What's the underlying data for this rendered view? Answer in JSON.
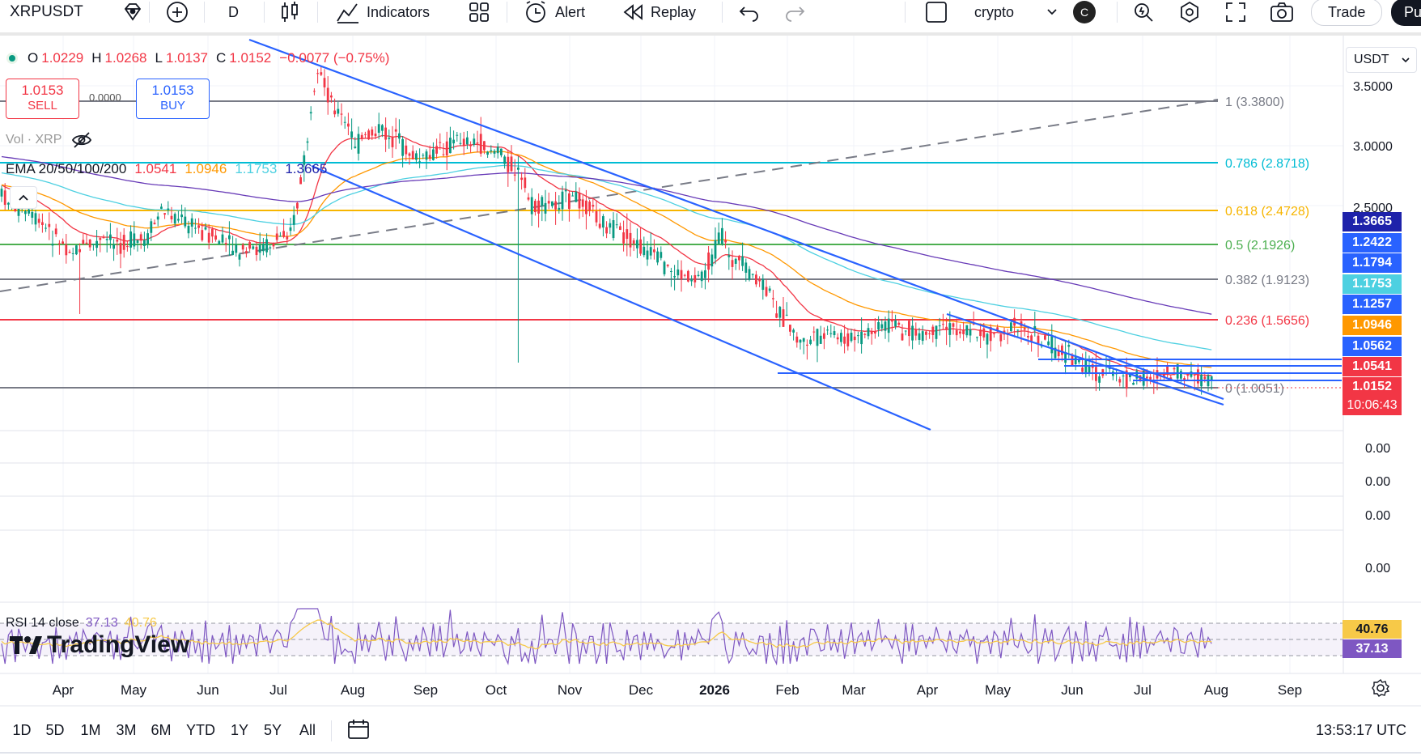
{
  "toolbar": {
    "symbol": "XRPUSDT",
    "interval": "D",
    "indicators_label": "Indicators",
    "alert_label": "Alert",
    "replay_label": "Replay",
    "layout_name": "crypto",
    "avatar_letter": "C",
    "trade_label": "Trade",
    "publish_label": "Pu"
  },
  "legend": {
    "open_label": "O",
    "open_value": "1.0229",
    "high_label": "H",
    "high_value": "1.0268",
    "low_label": "L",
    "low_value": "1.0137",
    "close_label": "C",
    "close_value": "1.0152",
    "change": "−0.0077 (−0.75%)"
  },
  "order": {
    "sell_price": "1.0153",
    "sell_label": "SELL",
    "buy_price": "1.0153",
    "buy_label": "BUY",
    "spread": "0.0000"
  },
  "volume_legend": "Vol · XRP",
  "ema_legend": {
    "title": "EMA 20/50/100/200",
    "v20": "1.0541",
    "v50": "1.0946",
    "v100": "1.1753",
    "v200": "1.3665"
  },
  "rsi_legend": {
    "title": "RSI 14 close",
    "value": "37.13",
    "ma": "40.76"
  },
  "brand": "TradingView",
  "price_axis": {
    "currency": "USDT",
    "ticks": [
      "3.5000",
      "3.0000",
      "2.5000"
    ],
    "zero_ticks": [
      "0.00",
      "0.00",
      "0.00",
      "0.00"
    ]
  },
  "fib_levels": [
    {
      "label": "1 (3.3800)",
      "color": "#787b86"
    },
    {
      "label": "0.786 (2.8718)",
      "color": "#00bcd4"
    },
    {
      "label": "0.618 (2.4728)",
      "color": "#f7b500"
    },
    {
      "label": "0.5 (2.1926)",
      "color": "#4caf50"
    },
    {
      "label": "0.382 (1.9123)",
      "color": "#787b86"
    },
    {
      "label": "0.236 (1.5656)",
      "color": "#f23645"
    },
    {
      "label": "0 (1.0051)",
      "color": "#787b86"
    }
  ],
  "price_badges": [
    {
      "value": "1.3665",
      "color": "#1e22aa"
    },
    {
      "value": "1.2422",
      "color": "#2962ff"
    },
    {
      "value": "1.1794",
      "color": "#2962ff"
    },
    {
      "value": "1.1753",
      "color": "#4dd0e1"
    },
    {
      "value": "1.1257",
      "color": "#2962ff"
    },
    {
      "value": "1.0946",
      "color": "#ff9800"
    },
    {
      "value": "1.0562",
      "color": "#2962ff"
    },
    {
      "value": "1.0541",
      "color": "#f23645"
    },
    {
      "value": "1.0152",
      "color": "#f23645"
    }
  ],
  "countdown": "10:06:43",
  "rsi_badges": [
    {
      "value": "40.76",
      "color": "#f7c948"
    },
    {
      "value": "37.13",
      "color": "#7e57c2"
    }
  ],
  "time_axis": [
    "Apr",
    "May",
    "Jun",
    "Jul",
    "Aug",
    "Sep",
    "Oct",
    "Nov",
    "Dec",
    "2026",
    "Feb",
    "Mar",
    "Apr",
    "May",
    "Jun",
    "Jul",
    "Aug",
    "Sep"
  ],
  "ranges": [
    "1D",
    "5D",
    "1M",
    "3M",
    "6M",
    "YTD",
    "1Y",
    "5Y",
    "All"
  ],
  "clock": "13:53:17 UTC",
  "colors": {
    "up": "#089981",
    "down": "#f23645",
    "trend": "#2962ff",
    "ema20": "#f23645",
    "ema50": "#ff9800",
    "ema100": "#4dd0e1",
    "ema200": "#673ab7"
  }
}
